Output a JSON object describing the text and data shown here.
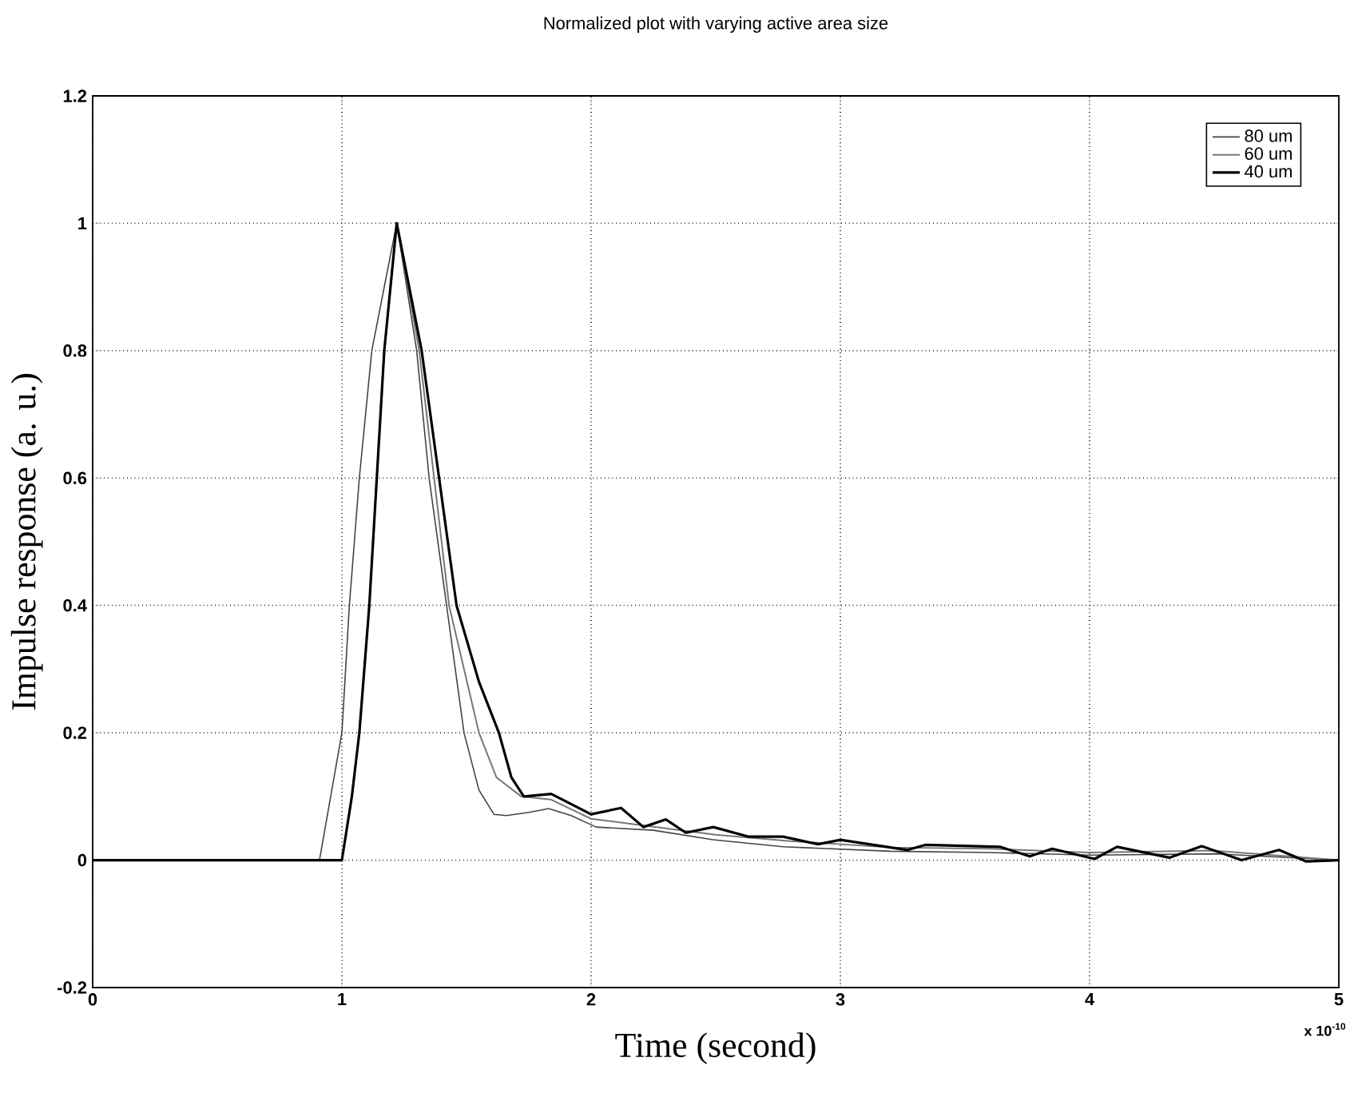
{
  "chart_data": {
    "type": "line",
    "title": "Normalized plot with varying active area size",
    "xlabel": "Time (second)",
    "ylabel": "Impulse response (a. u.)",
    "annotations": [
      "x 10$^{-10}$"
    ],
    "xlim": [
      0,
      5
    ],
    "ylim": [
      -0.2,
      1.2
    ],
    "xticks": [
      0,
      1,
      2,
      3,
      4,
      5
    ],
    "yticks": [
      -0.2,
      0,
      0.2,
      0.4,
      0.6,
      0.8,
      1,
      1.2
    ],
    "grid": true,
    "legend": "top right",
    "line_style": "solid",
    "series": [
      {
        "name": "80 um",
        "color": "#444444",
        "x": [
          0,
          0.91,
          1.0,
          1.03,
          1.07,
          1.12,
          1.22,
          1.3,
          1.35,
          1.42,
          1.49,
          1.55,
          1.61,
          1.66,
          1.75,
          1.83,
          1.92,
          2.02,
          2.25,
          2.49,
          2.77,
          3.2,
          3.6,
          4.0,
          4.5,
          5.0
        ],
        "values": [
          0,
          0,
          0.2,
          0.4,
          0.6,
          0.8,
          1,
          0.8,
          0.6,
          0.4,
          0.2,
          0.11,
          0.072,
          0.07,
          0.075,
          0.081,
          0.07,
          0.052,
          0.047,
          0.032,
          0.021,
          0.014,
          0.012,
          0.008,
          0.01,
          0
        ]
      },
      {
        "name": "60 um",
        "color": "#777777",
        "x": [
          0,
          1.0,
          1.04,
          1.07,
          1.11,
          1.14,
          1.17,
          1.22,
          1.31,
          1.37,
          1.43,
          1.49,
          1.55,
          1.62,
          1.72,
          1.84,
          2.0,
          2.2,
          2.5,
          2.8,
          3.2,
          3.6,
          4.0,
          4.5,
          5.0
        ],
        "values": [
          0,
          0,
          0.1,
          0.2,
          0.4,
          0.6,
          0.8,
          1,
          0.8,
          0.6,
          0.4,
          0.3,
          0.2,
          0.13,
          0.1,
          0.095,
          0.065,
          0.055,
          0.04,
          0.03,
          0.02,
          0.018,
          0.012,
          0.015,
          0
        ]
      },
      {
        "name": "40 um",
        "color": "#000000",
        "x": [
          0,
          1.0,
          1.04,
          1.07,
          1.11,
          1.14,
          1.17,
          1.22,
          1.32,
          1.39,
          1.46,
          1.55,
          1.63,
          1.68,
          1.73,
          1.84,
          2.0,
          2.12,
          2.21,
          2.3,
          2.38,
          2.49,
          2.63,
          2.77,
          2.91,
          3.0,
          3.27,
          3.34,
          3.64,
          3.76,
          3.85,
          4.02,
          4.11,
          4.32,
          4.45,
          4.61,
          4.76,
          4.87,
          5.0
        ],
        "values": [
          0,
          0,
          0.1,
          0.2,
          0.4,
          0.6,
          0.8,
          1,
          0.8,
          0.6,
          0.4,
          0.28,
          0.2,
          0.13,
          0.1,
          0.104,
          0.072,
          0.082,
          0.052,
          0.064,
          0.043,
          0.052,
          0.037,
          0.037,
          0.025,
          0.032,
          0.016,
          0.024,
          0.021,
          0.006,
          0.018,
          0.002,
          0.021,
          0.004,
          0.022,
          0,
          0.016,
          -0.002,
          0
        ]
      }
    ]
  }
}
